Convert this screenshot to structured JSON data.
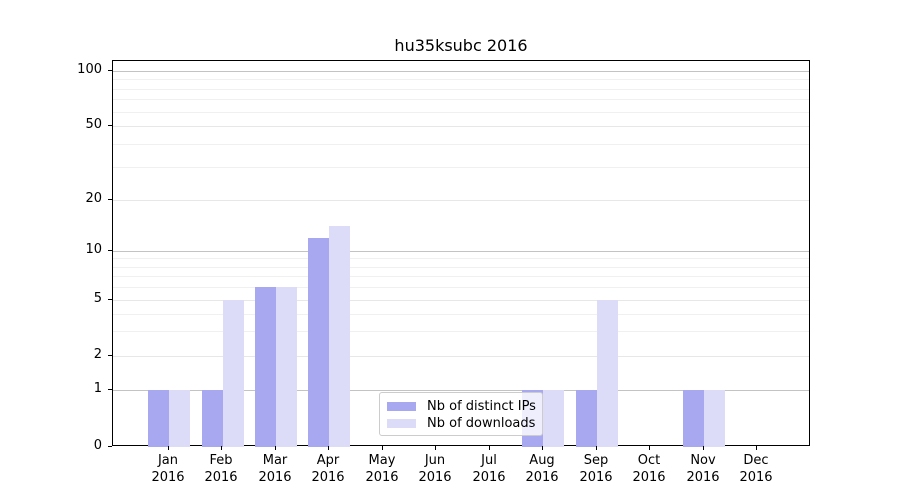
{
  "chart_data": {
    "type": "bar",
    "title": "hu35ksubc 2016",
    "yscale": "symlog (linear 0-1, logarithmic above 1)",
    "categories": [
      "Jan 2016",
      "Feb 2016",
      "Mar 2016",
      "Apr 2016",
      "May 2016",
      "Jun 2016",
      "Jul 2016",
      "Aug 2016",
      "Sep 2016",
      "Oct 2016",
      "Nov 2016",
      "Dec 2016"
    ],
    "series": [
      {
        "name": "Nb of distinct IPs",
        "color": "#a8a8f0",
        "values": [
          1,
          1,
          6,
          12,
          0,
          0,
          0,
          1,
          1,
          0,
          1,
          0
        ]
      },
      {
        "name": "Nb of downloads",
        "color": "#dcdcf8",
        "values": [
          1,
          5,
          6,
          14,
          0,
          0,
          0,
          1,
          5,
          0,
          1,
          0
        ]
      }
    ],
    "y_ticks": [
      0,
      1,
      2,
      5,
      10,
      20,
      50,
      100
    ],
    "ylim": [
      0,
      115
    ],
    "xlabel": "",
    "ylabel": "",
    "grid": "horizontal, major + log minor lines",
    "legend_position": "lower center (inside plot, overlapping Aug bars)"
  }
}
